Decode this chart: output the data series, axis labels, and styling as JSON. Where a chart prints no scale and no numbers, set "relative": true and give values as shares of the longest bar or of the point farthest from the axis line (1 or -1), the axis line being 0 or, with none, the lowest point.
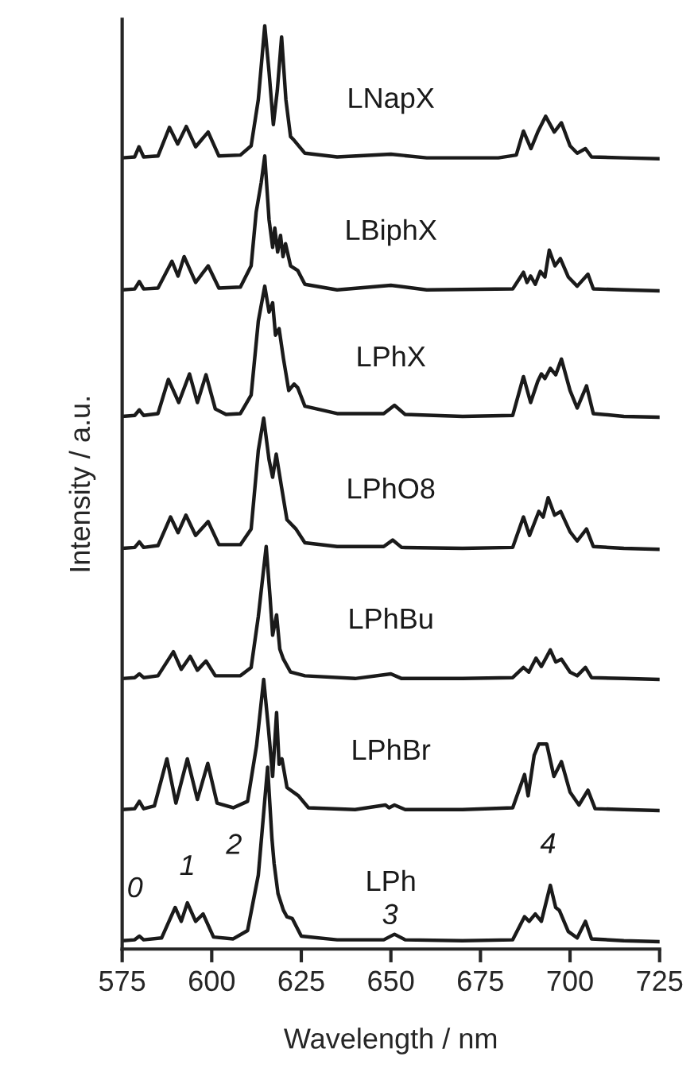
{
  "chart_data": {
    "type": "line",
    "relative": true,
    "xlabel": "Wavelength / nm",
    "ylabel": "Intensity / a.u.",
    "xlim": [
      575,
      725
    ],
    "xticks": [
      575,
      600,
      625,
      650,
      675,
      700,
      725
    ],
    "grid": false,
    "legend": false,
    "marker": "none",
    "line_style": "solid",
    "series": [
      {
        "name": "LNapX",
        "color": "#1a1a1a",
        "x": [
          575,
          578.5,
          579.7,
          581,
          585,
          588.2,
          590.5,
          592.9,
          595.5,
          599,
          602,
          608,
          611,
          613,
          614.8,
          616,
          617.2,
          618.3,
          619.5,
          620.7,
          622,
          623,
          626,
          635,
          650,
          660,
          680,
          685,
          687,
          689.1,
          691,
          693.2,
          695.6,
          697.6,
          700,
          702,
          704.3,
          706,
          715,
          725
        ],
        "values": [
          0.857,
          0.858,
          0.869,
          0.858,
          0.859,
          0.89,
          0.872,
          0.891,
          0.869,
          0.885,
          0.859,
          0.86,
          0.87,
          0.92,
          1.0,
          0.95,
          0.893,
          0.93,
          0.988,
          0.92,
          0.88,
          0.876,
          0.862,
          0.858,
          0.861,
          0.857,
          0.857,
          0.86,
          0.886,
          0.867,
          0.885,
          0.902,
          0.885,
          0.895,
          0.87,
          0.862,
          0.867,
          0.858,
          0.857,
          0.856
        ]
      },
      {
        "name": "LBiphX",
        "color": "#1a1a1a",
        "x": [
          575,
          578.5,
          579.8,
          581,
          585,
          588.9,
          590.6,
          592.3,
          595.5,
          599,
          602,
          608,
          611,
          612.4,
          613.8,
          614.8,
          616,
          617,
          617.6,
          618.4,
          619.2,
          619.9,
          620.6,
          622,
          624,
          626,
          635,
          650,
          660,
          684,
          687,
          688,
          689,
          690.3,
          691.7,
          693,
          694.2,
          695.8,
          697.3,
          699.5,
          702,
          705,
          706.5,
          715,
          725
        ],
        "values": [
          0.714,
          0.715,
          0.723,
          0.715,
          0.716,
          0.745,
          0.729,
          0.75,
          0.722,
          0.74,
          0.716,
          0.717,
          0.74,
          0.798,
          0.83,
          0.859,
          0.79,
          0.76,
          0.781,
          0.755,
          0.773,
          0.75,
          0.764,
          0.74,
          0.735,
          0.72,
          0.714,
          0.719,
          0.714,
          0.715,
          0.733,
          0.722,
          0.729,
          0.72,
          0.734,
          0.728,
          0.757,
          0.74,
          0.748,
          0.728,
          0.718,
          0.731,
          0.715,
          0.714,
          0.713
        ]
      },
      {
        "name": "LPhX",
        "color": "#1a1a1a",
        "x": [
          575,
          578.5,
          579.8,
          581,
          585,
          587.9,
          590.8,
          593.8,
          596,
          598.4,
          601,
          604,
          608,
          611,
          613,
          614.8,
          616,
          617,
          617.8,
          618.8,
          620,
          621.5,
          623,
          624,
          626,
          635,
          648,
          651,
          654,
          670,
          684,
          687,
          689,
          691,
          692,
          693,
          694.5,
          696,
          697.6,
          700,
          702,
          704.6,
          706.5,
          715,
          725
        ],
        "values": [
          0.577,
          0.578,
          0.584,
          0.578,
          0.58,
          0.617,
          0.592,
          0.623,
          0.592,
          0.622,
          0.585,
          0.579,
          0.58,
          0.6,
          0.68,
          0.718,
          0.69,
          0.7,
          0.665,
          0.672,
          0.64,
          0.605,
          0.612,
          0.608,
          0.588,
          0.58,
          0.58,
          0.589,
          0.579,
          0.577,
          0.578,
          0.62,
          0.592,
          0.615,
          0.623,
          0.618,
          0.629,
          0.622,
          0.639,
          0.605,
          0.586,
          0.61,
          0.58,
          0.577,
          0.576
        ]
      },
      {
        "name": "LPhO8",
        "color": "#1a1a1a",
        "x": [
          575,
          578.5,
          579.8,
          581,
          585,
          588.5,
          590.6,
          592.8,
          595.5,
          599,
          602,
          608,
          611,
          613,
          614.5,
          616,
          617,
          618,
          619.5,
          621,
          623.5,
          626,
          635,
          648,
          650.5,
          653,
          670,
          684,
          687,
          688.7,
          691.3,
          692.5,
          693.9,
          695.7,
          697.4,
          700,
          702,
          704.6,
          706.5,
          715,
          725
        ],
        "values": [
          0.434,
          0.435,
          0.441,
          0.435,
          0.437,
          0.468,
          0.451,
          0.47,
          0.448,
          0.463,
          0.438,
          0.438,
          0.455,
          0.54,
          0.575,
          0.53,
          0.511,
          0.536,
          0.5,
          0.465,
          0.455,
          0.44,
          0.436,
          0.436,
          0.443,
          0.435,
          0.434,
          0.435,
          0.468,
          0.448,
          0.474,
          0.468,
          0.489,
          0.47,
          0.474,
          0.452,
          0.442,
          0.455,
          0.436,
          0.434,
          0.433
        ]
      },
      {
        "name": "LPhBu",
        "color": "#1a1a1a",
        "x": [
          575,
          578.5,
          579.8,
          581,
          585,
          589.3,
          591.5,
          594,
          596,
          598.4,
          601,
          608,
          611,
          613,
          615.2,
          616.3,
          617,
          618.1,
          619,
          620,
          622,
          626,
          640,
          650,
          653,
          670,
          684,
          687,
          688.5,
          690.5,
          692,
          694.5,
          696,
          697.6,
          700,
          702,
          704.3,
          706,
          715,
          725
        ],
        "values": [
          0.293,
          0.294,
          0.298,
          0.294,
          0.296,
          0.322,
          0.303,
          0.317,
          0.302,
          0.312,
          0.296,
          0.296,
          0.305,
          0.36,
          0.436,
          0.38,
          0.34,
          0.362,
          0.325,
          0.314,
          0.3,
          0.296,
          0.293,
          0.298,
          0.293,
          0.293,
          0.294,
          0.305,
          0.3,
          0.315,
          0.306,
          0.324,
          0.311,
          0.314,
          0.3,
          0.296,
          0.305,
          0.294,
          0.293,
          0.292
        ]
      },
      {
        "name": "LPhBr",
        "color": "#1a1a1a",
        "x": [
          575,
          578.5,
          579.8,
          581,
          584,
          587.5,
          590,
          593.2,
          596,
          598.9,
          601.5,
          606,
          610,
          612.5,
          614.5,
          615.8,
          617,
          618.1,
          618.8,
          619.6,
          621,
          624.2,
          627,
          640,
          648.5,
          649.5,
          651,
          654,
          670,
          684,
          687.3,
          688.3,
          690,
          691.3,
          693.5,
          695.5,
          697.6,
          700,
          702.5,
          705,
          707,
          715,
          725
        ],
        "values": [
          0.151,
          0.152,
          0.16,
          0.152,
          0.155,
          0.206,
          0.158,
          0.206,
          0.162,
          0.201,
          0.158,
          0.153,
          0.16,
          0.22,
          0.292,
          0.24,
          0.187,
          0.256,
          0.2,
          0.206,
          0.175,
          0.166,
          0.153,
          0.151,
          0.156,
          0.153,
          0.156,
          0.151,
          0.151,
          0.153,
          0.189,
          0.166,
          0.21,
          0.222,
          0.222,
          0.187,
          0.203,
          0.17,
          0.156,
          0.172,
          0.152,
          0.151,
          0.15
        ]
      },
      {
        "name": "LPh",
        "color": "#1a1a1a",
        "x": [
          575,
          578.5,
          579.8,
          581,
          586,
          589.8,
          591.5,
          593.2,
          595.5,
          597.6,
          600.5,
          606,
          610,
          613,
          615.6,
          616.8,
          617.4,
          618.5,
          620,
          621,
          622.5,
          625,
          635,
          648,
          651,
          654,
          670,
          684,
          687.3,
          688.6,
          690.3,
          692,
          694.5,
          696,
          697,
          699.5,
          702,
          704.3,
          706,
          715,
          725
        ],
        "values": [
          0.009,
          0.01,
          0.014,
          0.01,
          0.012,
          0.045,
          0.03,
          0.05,
          0.03,
          0.038,
          0.013,
          0.011,
          0.02,
          0.08,
          0.197,
          0.12,
          0.093,
          0.06,
          0.042,
          0.035,
          0.033,
          0.014,
          0.01,
          0.01,
          0.016,
          0.01,
          0.009,
          0.01,
          0.035,
          0.03,
          0.038,
          0.03,
          0.069,
          0.045,
          0.042,
          0.019,
          0.012,
          0.03,
          0.011,
          0.009,
          0.008
        ]
      }
    ],
    "annotations": [
      {
        "text": "0",
        "x": 579.8,
        "y": 0.014
      },
      {
        "text": "1",
        "x": 593.2,
        "y": 0.05
      },
      {
        "text": "2",
        "x": 613,
        "y": 0.08
      },
      {
        "text": "3",
        "x": 651,
        "y": 0.016
      },
      {
        "text": "4",
        "x": 694.5,
        "y": 0.069
      }
    ]
  }
}
